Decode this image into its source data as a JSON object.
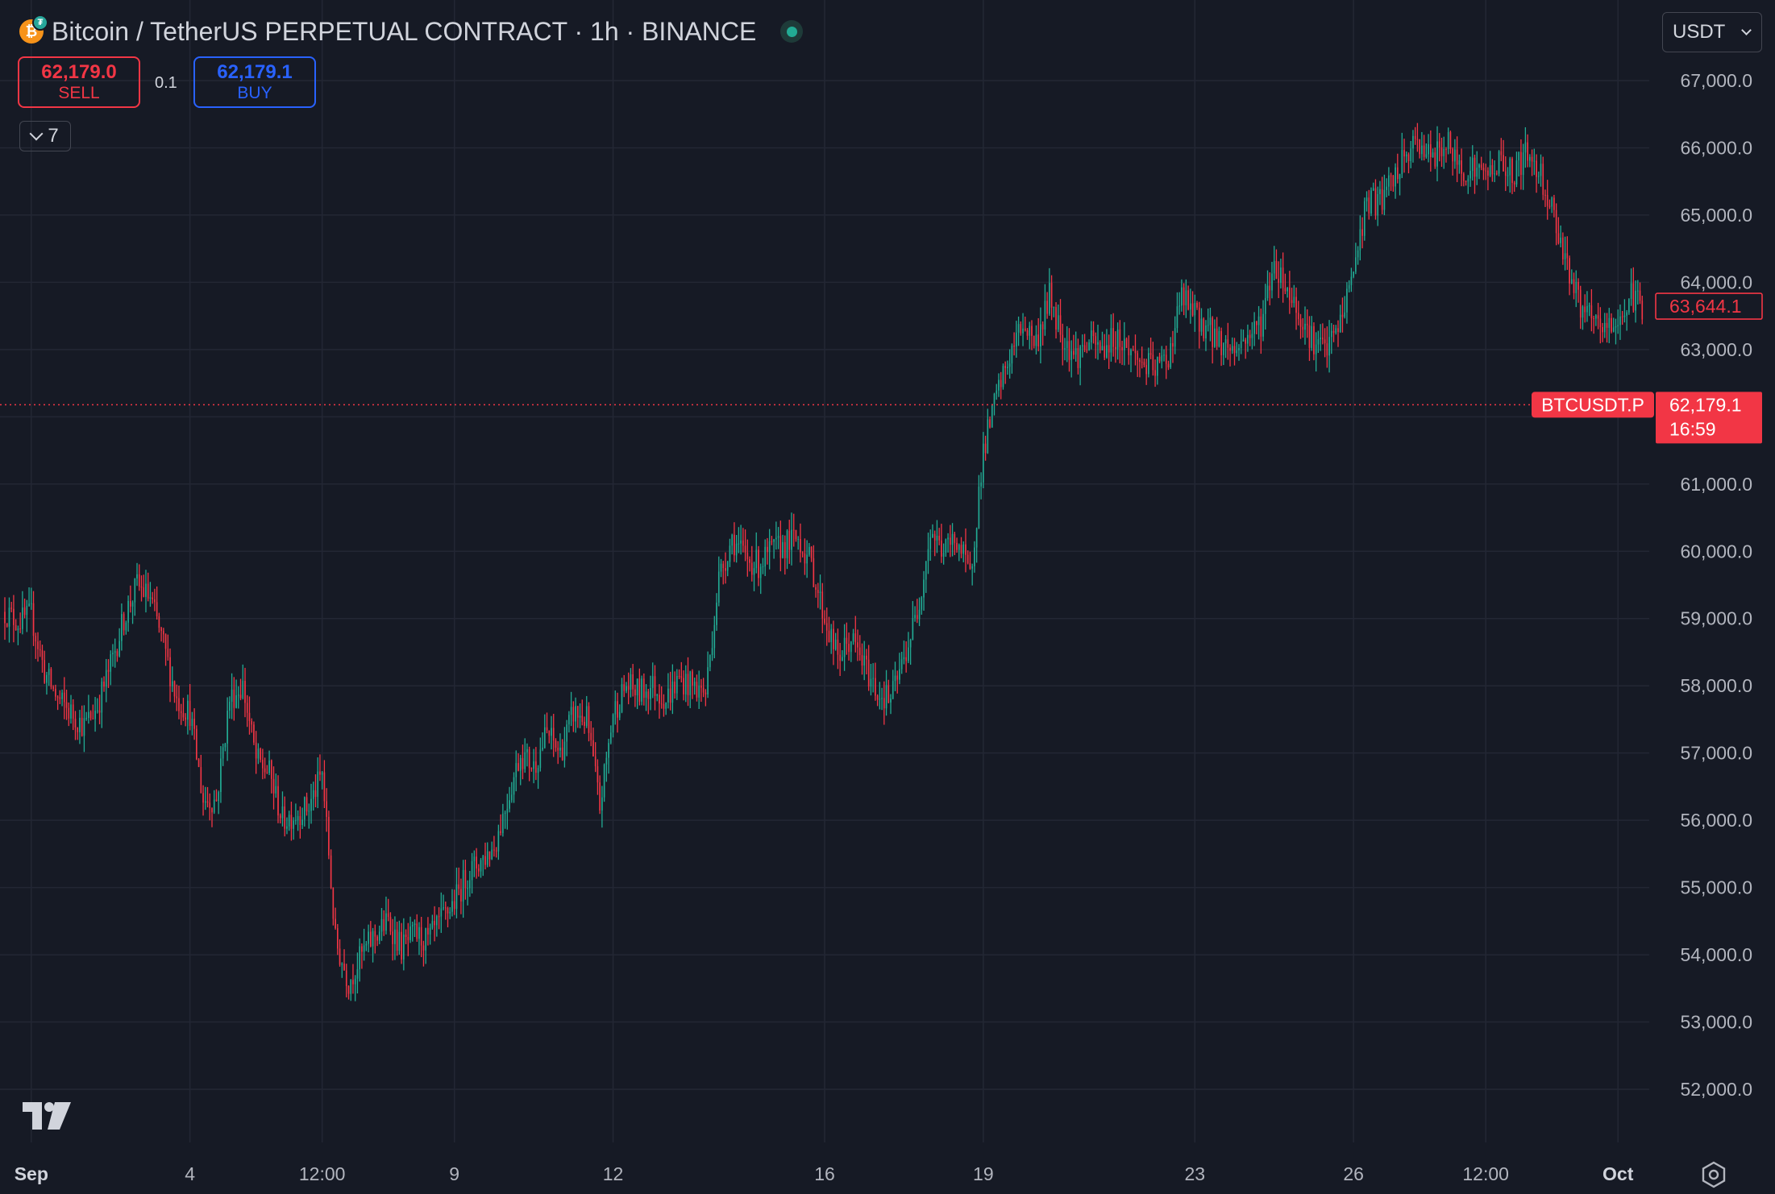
{
  "header": {
    "title": "Bitcoin / TetherUS PERPETUAL CONTRACT · 1h · BINANCE",
    "coin_icon": "bitcoin-icon",
    "coin_glyph": "₿",
    "sub_icon_glyph": "₮"
  },
  "trade": {
    "sell_price": "62,179.0",
    "sell_label": "SELL",
    "spread": "0.1",
    "buy_price": "62,179.1",
    "buy_label": "BUY"
  },
  "indicators_toggle": {
    "count": "7"
  },
  "currency": {
    "selected": "USDT"
  },
  "price_tags": {
    "last_price": "62,179.1",
    "countdown": "16:59",
    "symbol": "BTCUSDT.P",
    "crosshair_price": "63,644.1"
  },
  "colors": {
    "up": "#22ab94",
    "down": "#f23645",
    "background": "#161a25",
    "grid": "#232734",
    "text": "#b2b5be",
    "buy": "#2962ff"
  },
  "chart_data": {
    "type": "candlestick",
    "interval": "1h",
    "ylim": [
      51400,
      67500
    ],
    "y_ticks": [
      52000,
      53000,
      54000,
      55000,
      56000,
      57000,
      58000,
      59000,
      60000,
      61000,
      62000,
      63000,
      64000,
      65000,
      66000,
      67000
    ],
    "y_tick_labels": [
      "52,000.0",
      "53,000.0",
      "54,000.0",
      "55,000.0",
      "56,000.0",
      "57,000.0",
      "58,000.0",
      "59,000.0",
      "60,000.0",
      "61,000.0",
      "",
      "63,000.0",
      "64,000.0",
      "65,000.0",
      "66,000.0",
      "67,000.0"
    ],
    "x_ticks": [
      {
        "label": "Sep",
        "t": "2024-09-01 00:00",
        "bold": true
      },
      {
        "label": "4",
        "t": "2024-09-04 00:00",
        "bold": false
      },
      {
        "label": "12:00",
        "t": "2024-09-06 12:00",
        "bold": false
      },
      {
        "label": "9",
        "t": "2024-09-09 00:00",
        "bold": false
      },
      {
        "label": "12",
        "t": "2024-09-12 00:00",
        "bold": false
      },
      {
        "label": "16",
        "t": "2024-09-16 00:00",
        "bold": false
      },
      {
        "label": "19",
        "t": "2024-09-19 00:00",
        "bold": false
      },
      {
        "label": "23",
        "t": "2024-09-23 00:00",
        "bold": false
      },
      {
        "label": "26",
        "t": "2024-09-26 00:00",
        "bold": false
      },
      {
        "label": "12:00",
        "t": "2024-09-28 12:00",
        "bold": false
      },
      {
        "label": "Oct",
        "t": "2024-10-01 00:00",
        "bold": true
      }
    ],
    "x_range": [
      "2024-08-31 12:00",
      "2024-10-01 12:00"
    ],
    "last_price": 62179.1,
    "crosshair_price": 63644.1,
    "price_path": [
      [
        "2024-08-31 12:00",
        59100
      ],
      [
        "2024-08-31 18:00",
        58950
      ],
      [
        "2024-09-01 00:00",
        59050
      ],
      [
        "2024-09-01 06:00",
        58200
      ],
      [
        "2024-09-01 12:00",
        57800
      ],
      [
        "2024-09-01 18:00",
        57600
      ],
      [
        "2024-09-02 00:00",
        57400
      ],
      [
        "2024-09-02 06:00",
        57700
      ],
      [
        "2024-09-02 12:00",
        58300
      ],
      [
        "2024-09-02 18:00",
        59000
      ],
      [
        "2024-09-03 00:00",
        59500
      ],
      [
        "2024-09-03 06:00",
        59300
      ],
      [
        "2024-09-03 12:00",
        58600
      ],
      [
        "2024-09-03 18:00",
        57800
      ],
      [
        "2024-09-04 00:00",
        57600
      ],
      [
        "2024-09-04 06:00",
        56300
      ],
      [
        "2024-09-04 12:00",
        56300
      ],
      [
        "2024-09-04 18:00",
        57800
      ],
      [
        "2024-09-05 00:00",
        58000
      ],
      [
        "2024-09-05 06:00",
        56900
      ],
      [
        "2024-09-05 12:00",
        56700
      ],
      [
        "2024-09-05 18:00",
        56000
      ],
      [
        "2024-09-06 00:00",
        56100
      ],
      [
        "2024-09-06 06:00",
        56200
      ],
      [
        "2024-09-06 12:00",
        56700
      ],
      [
        "2024-09-06 15:00",
        55500
      ],
      [
        "2024-09-06 18:00",
        54200
      ],
      [
        "2024-09-07 00:00",
        53600
      ],
      [
        "2024-09-07 06:00",
        54000
      ],
      [
        "2024-09-07 12:00",
        54300
      ],
      [
        "2024-09-07 18:00",
        54500
      ],
      [
        "2024-09-08 00:00",
        54100
      ],
      [
        "2024-09-08 06:00",
        54300
      ],
      [
        "2024-09-08 12:00",
        54200
      ],
      [
        "2024-09-08 18:00",
        54500
      ],
      [
        "2024-09-09 00:00",
        54800
      ],
      [
        "2024-09-09 06:00",
        55200
      ],
      [
        "2024-09-09 12:00",
        55400
      ],
      [
        "2024-09-09 18:00",
        55600
      ],
      [
        "2024-09-10 00:00",
        56300
      ],
      [
        "2024-09-10 06:00",
        57000
      ],
      [
        "2024-09-10 12:00",
        56800
      ],
      [
        "2024-09-10 18:00",
        57300
      ],
      [
        "2024-09-11 00:00",
        57000
      ],
      [
        "2024-09-11 06:00",
        57600
      ],
      [
        "2024-09-11 12:00",
        57500
      ],
      [
        "2024-09-11 18:00",
        56200
      ],
      [
        "2024-09-12 00:00",
        57600
      ],
      [
        "2024-09-12 06:00",
        58000
      ],
      [
        "2024-09-12 12:00",
        57900
      ],
      [
        "2024-09-12 18:00",
        58000
      ],
      [
        "2024-09-13 00:00",
        57800
      ],
      [
        "2024-09-13 06:00",
        58100
      ],
      [
        "2024-09-13 12:00",
        58000
      ],
      [
        "2024-09-13 18:00",
        57900
      ],
      [
        "2024-09-14 00:00",
        59600
      ],
      [
        "2024-09-14 06:00",
        60200
      ],
      [
        "2024-09-14 12:00",
        59900
      ],
      [
        "2024-09-14 18:00",
        59800
      ],
      [
        "2024-09-15 00:00",
        60000
      ],
      [
        "2024-09-15 06:00",
        60100
      ],
      [
        "2024-09-15 12:00",
        60200
      ],
      [
        "2024-09-15 18:00",
        59800
      ],
      [
        "2024-09-16 00:00",
        59000
      ],
      [
        "2024-09-16 06:00",
        58400
      ],
      [
        "2024-09-16 12:00",
        58700
      ],
      [
        "2024-09-16 18:00",
        58300
      ],
      [
        "2024-09-17 00:00",
        57900
      ],
      [
        "2024-09-17 06:00",
        57800
      ],
      [
        "2024-09-17 12:00",
        58400
      ],
      [
        "2024-09-17 18:00",
        59100
      ],
      [
        "2024-09-18 00:00",
        60300
      ],
      [
        "2024-09-18 06:00",
        60000
      ],
      [
        "2024-09-18 12:00",
        60200
      ],
      [
        "2024-09-18 18:00",
        59600
      ],
      [
        "2024-09-19 00:00",
        61500
      ],
      [
        "2024-09-19 06:00",
        62300
      ],
      [
        "2024-09-19 12:00",
        62900
      ],
      [
        "2024-09-19 18:00",
        63400
      ],
      [
        "2024-09-20 00:00",
        63100
      ],
      [
        "2024-09-20 06:00",
        63800
      ],
      [
        "2024-09-20 12:00",
        63200
      ],
      [
        "2024-09-20 18:00",
        62900
      ],
      [
        "2024-09-21 00:00",
        63100
      ],
      [
        "2024-09-21 06:00",
        63000
      ],
      [
        "2024-09-21 12:00",
        63200
      ],
      [
        "2024-09-21 18:00",
        63000
      ],
      [
        "2024-09-22 00:00",
        62800
      ],
      [
        "2024-09-22 06:00",
        62700
      ],
      [
        "2024-09-22 12:00",
        62900
      ],
      [
        "2024-09-22 18:00",
        63800
      ],
      [
        "2024-09-23 00:00",
        63500
      ],
      [
        "2024-09-23 06:00",
        63300
      ],
      [
        "2024-09-23 12:00",
        63100
      ],
      [
        "2024-09-23 18:00",
        63000
      ],
      [
        "2024-09-24 00:00",
        63200
      ],
      [
        "2024-09-24 06:00",
        63400
      ],
      [
        "2024-09-24 12:00",
        64300
      ],
      [
        "2024-09-24 18:00",
        63900
      ],
      [
        "2024-09-25 00:00",
        63500
      ],
      [
        "2024-09-25 06:00",
        63100
      ],
      [
        "2024-09-25 12:00",
        63000
      ],
      [
        "2024-09-25 18:00",
        63400
      ],
      [
        "2024-09-26 00:00",
        64200
      ],
      [
        "2024-09-26 06:00",
        65200
      ],
      [
        "2024-09-26 12:00",
        65200
      ],
      [
        "2024-09-26 18:00",
        65500
      ],
      [
        "2024-09-27 00:00",
        65900
      ],
      [
        "2024-09-27 06:00",
        66100
      ],
      [
        "2024-09-27 12:00",
        65800
      ],
      [
        "2024-09-27 18:00",
        66100
      ],
      [
        "2024-09-28 00:00",
        65700
      ],
      [
        "2024-09-28 06:00",
        65700
      ],
      [
        "2024-09-28 12:00",
        65600
      ],
      [
        "2024-09-28 18:00",
        65800
      ],
      [
        "2024-09-29 00:00",
        65600
      ],
      [
        "2024-09-29 06:00",
        65900
      ],
      [
        "2024-09-29 12:00",
        65700
      ],
      [
        "2024-09-29 18:00",
        65100
      ],
      [
        "2024-09-30 00:00",
        64400
      ],
      [
        "2024-09-30 06:00",
        63700
      ],
      [
        "2024-09-30 12:00",
        63400
      ],
      [
        "2024-09-30 18:00",
        63300
      ],
      [
        "2024-10-01 00:00",
        63400
      ],
      [
        "2024-10-01 06:00",
        63800
      ],
      [
        "2024-10-01 11:00",
        63650
      ]
    ]
  }
}
